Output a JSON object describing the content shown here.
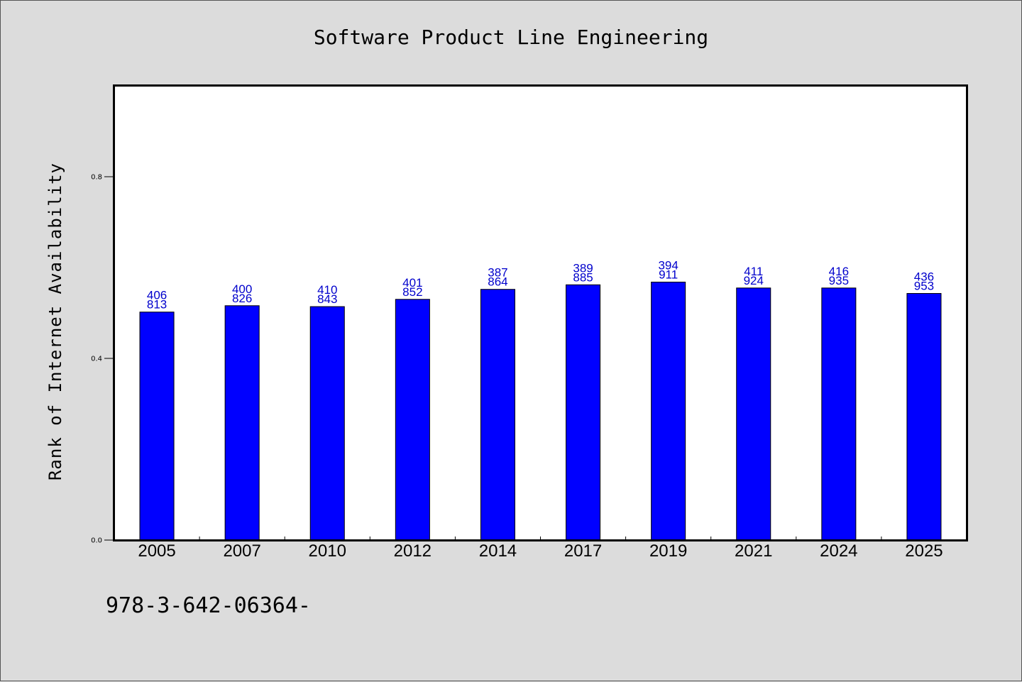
{
  "chart_data": {
    "type": "bar",
    "title": "Software Product Line Engineering",
    "xlabel": "",
    "ylabel": "Rank of Internet Availability",
    "categories": [
      "2005",
      "2007",
      "2010",
      "2012",
      "2014",
      "2017",
      "2019",
      "2021",
      "2024",
      "2025"
    ],
    "values": [
      0.502,
      0.516,
      0.514,
      0.53,
      0.552,
      0.562,
      0.568,
      0.555,
      0.555,
      0.543
    ],
    "label_top": [
      "406",
      "400",
      "410",
      "401",
      "387",
      "389",
      "394",
      "411",
      "416",
      "436"
    ],
    "label_bottom": [
      "813",
      "826",
      "843",
      "852",
      "864",
      "885",
      "911",
      "924",
      "935",
      "953"
    ],
    "ylim": [
      0,
      1.0
    ],
    "yticks": [
      0.0,
      0.4,
      0.8
    ],
    "ytick_labels": [
      "0.0",
      "0.4",
      "0.8"
    ],
    "bar_color": "#0000ff",
    "label_color": "#0000cc",
    "grid": false,
    "legend": "none"
  },
  "footnote": "978-3-642-06364-"
}
